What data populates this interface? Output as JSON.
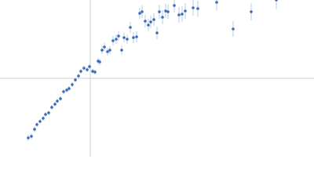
{
  "chart_data": {
    "type": "scatter",
    "color": "#3a6db5",
    "error_color": "#a9bfdc",
    "xlim": [
      -115,
      285
    ],
    "ylim": [
      -100,
      100
    ],
    "x": [
      -79,
      -75,
      -71,
      -68,
      -64,
      -60,
      -57,
      -53,
      -49,
      -45,
      -42,
      -38,
      -34,
      -30,
      -27,
      -23,
      -19,
      -15,
      -12,
      -8,
      -4,
      -1,
      3,
      6,
      10,
      12,
      15,
      18,
      22,
      25,
      29,
      33,
      36,
      40,
      43,
      47,
      51,
      55,
      59,
      63,
      66,
      70,
      74,
      77,
      81,
      85,
      88,
      92,
      96,
      99,
      107,
      113,
      117,
      121,
      131,
      137,
      161,
      182,
      205,
      237
    ],
    "values": [
      -76,
      -74,
      -65,
      -59,
      -55,
      -51,
      -46,
      -44,
      -37,
      -33,
      -29,
      -26,
      -17,
      -15,
      -13,
      -8,
      -2,
      3,
      9,
      13,
      11,
      15,
      9,
      8,
      22,
      21,
      36,
      40,
      34,
      36,
      48,
      50,
      54,
      36,
      52,
      50,
      65,
      52,
      53,
      83,
      85,
      73,
      68,
      72,
      75,
      58,
      85,
      78,
      86,
      85,
      93,
      81,
      82,
      86,
      90,
      89,
      97,
      63,
      85,
      100
    ],
    "errors": [
      4,
      4,
      4,
      3,
      3,
      3,
      3,
      3,
      3,
      3,
      3,
      3,
      3,
      3,
      3,
      3,
      3,
      3,
      3,
      3,
      3,
      3,
      3,
      3,
      4,
      4,
      5,
      5,
      5,
      5,
      6,
      6,
      6,
      6,
      6,
      6,
      7,
      7,
      7,
      7,
      8,
      8,
      8,
      8,
      8,
      8,
      9,
      9,
      9,
      9,
      9,
      10,
      10,
      10,
      10,
      10,
      10,
      10,
      11,
      12
    ]
  }
}
